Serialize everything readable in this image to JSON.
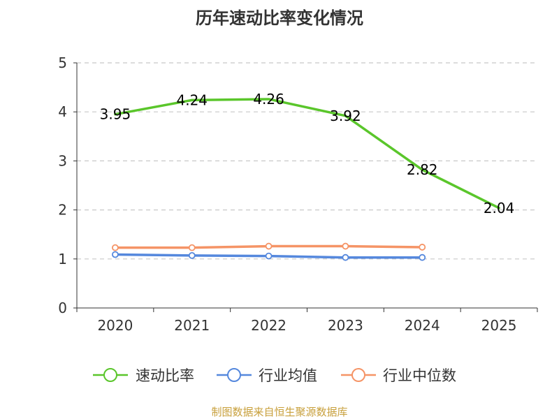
{
  "chart_data": {
    "type": "line",
    "title": "历年速动比率变化情况",
    "categories": [
      "2020",
      "2021",
      "2022",
      "2023",
      "2024",
      "2025"
    ],
    "ylim": [
      0,
      5
    ],
    "yticks": [
      0,
      1,
      2,
      3,
      4,
      5
    ],
    "grid": true,
    "legend_position": "bottom",
    "series": [
      {
        "name": "速动比率",
        "color": "#5ac62b",
        "values": [
          3.95,
          4.24,
          4.26,
          3.92,
          2.82,
          2.04
        ],
        "labels": [
          "3.95",
          "4.24",
          "4.26",
          "3.92",
          "2.82",
          "2.04"
        ]
      },
      {
        "name": "行业均值",
        "color": "#5588dd",
        "values": [
          1.09,
          1.07,
          1.06,
          1.03,
          1.03,
          null
        ]
      },
      {
        "name": "行业中位数",
        "color": "#f59466",
        "values": [
          1.23,
          1.23,
          1.26,
          1.26,
          1.24,
          null
        ]
      }
    ],
    "source": "制图数据来自恒生聚源数据库"
  }
}
